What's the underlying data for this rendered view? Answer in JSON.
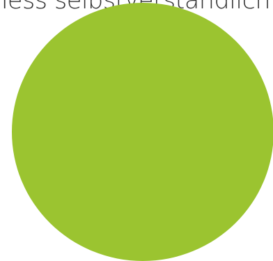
{
  "text": "Tess selbstverständlich",
  "colors": {
    "circle": "#9bc430",
    "text": "#333333",
    "background": "#ffffff"
  }
}
